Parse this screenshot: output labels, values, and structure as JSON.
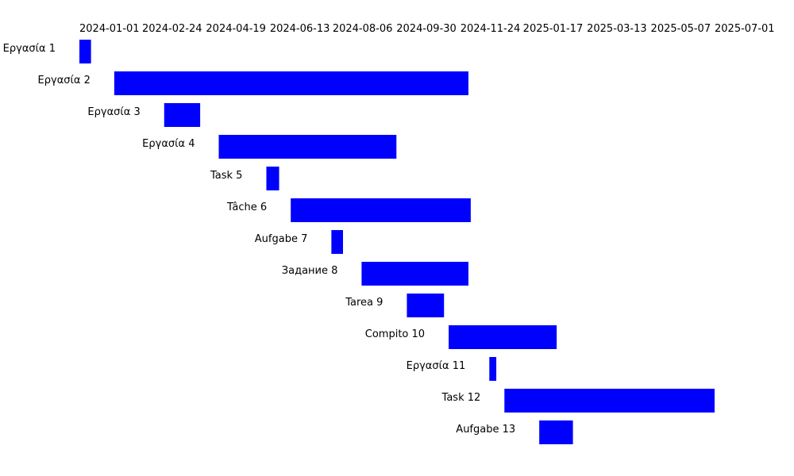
{
  "chart_data": {
    "type": "gantt",
    "title": "",
    "xlabel": "",
    "ylabel": "",
    "bar_color": "#0000ff",
    "grid": false,
    "legend": "none",
    "xlim": [
      "2024-01-01",
      "2025-07-01"
    ],
    "x_ticks": [
      "2024-01-01",
      "2024-02-24",
      "2024-04-19",
      "2024-06-13",
      "2024-08-06",
      "2024-09-30",
      "2024-11-24",
      "2025-01-17",
      "2025-03-13",
      "2025-05-07",
      "2025-07-01"
    ],
    "tasks": [
      {
        "name": "Εργασία 1",
        "start": "2024-01-01",
        "end": "2024-01-11"
      },
      {
        "name": "Εργασία 2",
        "start": "2024-01-31",
        "end": "2024-12-01"
      },
      {
        "name": "Εργασία 3",
        "start": "2024-03-14",
        "end": "2024-04-14"
      },
      {
        "name": "Εργασία 4",
        "start": "2024-04-30",
        "end": "2024-09-30"
      },
      {
        "name": "Task 5",
        "start": "2024-06-10",
        "end": "2024-06-21"
      },
      {
        "name": "Tâche 6",
        "start": "2024-07-01",
        "end": "2024-12-03"
      },
      {
        "name": "Aufgabe 7",
        "start": "2024-08-05",
        "end": "2024-08-15"
      },
      {
        "name": "Задание 8",
        "start": "2024-08-31",
        "end": "2024-12-01"
      },
      {
        "name": "Tarea 9",
        "start": "2024-10-09",
        "end": "2024-11-10"
      },
      {
        "name": "Compito 10",
        "start": "2024-11-14",
        "end": "2025-02-15"
      },
      {
        "name": "Εργασία 11",
        "start": "2024-12-19",
        "end": "2024-12-25"
      },
      {
        "name": "Task 12",
        "start": "2025-01-01",
        "end": "2025-07-01"
      },
      {
        "name": "Aufgabe 13",
        "start": "2025-01-31",
        "end": "2025-03-01"
      }
    ]
  }
}
